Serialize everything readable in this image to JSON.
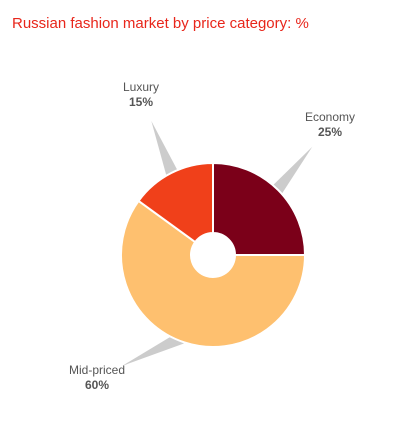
{
  "chart_data": {
    "type": "donut",
    "title": "Russian fashion market by price category: %",
    "categories": [
      "Economy",
      "Mid-priced",
      "Luxury"
    ],
    "values": [
      25,
      60,
      15
    ],
    "value_labels": [
      "25%",
      "60%",
      "15%"
    ],
    "colors": [
      "#7b0019",
      "#fec06f",
      "#f0401a"
    ]
  }
}
